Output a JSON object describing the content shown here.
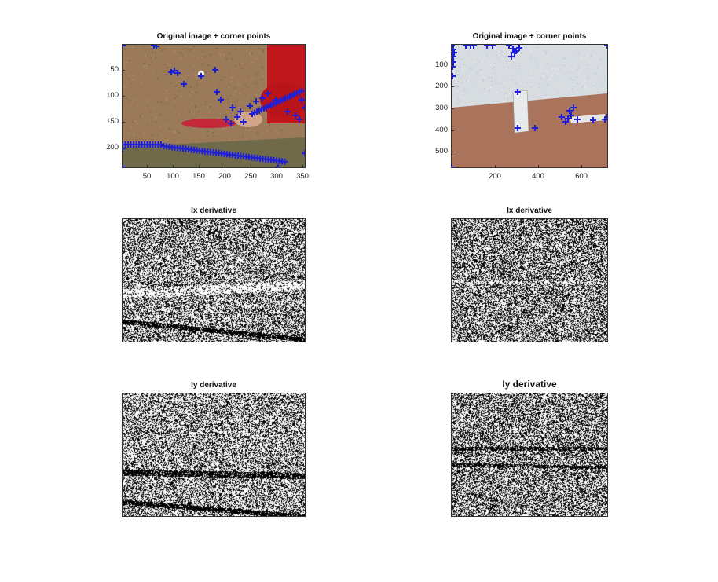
{
  "panels": [
    {
      "id": "p1",
      "title": "Original image + corner points",
      "type": "photo-ping-pong",
      "xticks": [
        "50",
        "100",
        "150",
        "200",
        "250",
        "300",
        "350"
      ],
      "yticks": [
        "50",
        "100",
        "150",
        "200"
      ],
      "marker_color": "#1f1fd6"
    },
    {
      "id": "p2",
      "title": "Original image + corner points",
      "type": "photo-room",
      "xticks": [
        "200",
        "400",
        "600"
      ],
      "yticks": [
        "100",
        "200",
        "300",
        "400",
        "500"
      ],
      "marker_color": "#1f1fd6"
    },
    {
      "id": "p3",
      "title": "Ix derivative",
      "type": "noise"
    },
    {
      "id": "p4",
      "title": "Ix derivative",
      "type": "noise"
    },
    {
      "id": "p5",
      "title": "Iy derivative",
      "type": "noise"
    },
    {
      "id": "p6",
      "title": "Iy derivative",
      "type": "noise"
    }
  ]
}
